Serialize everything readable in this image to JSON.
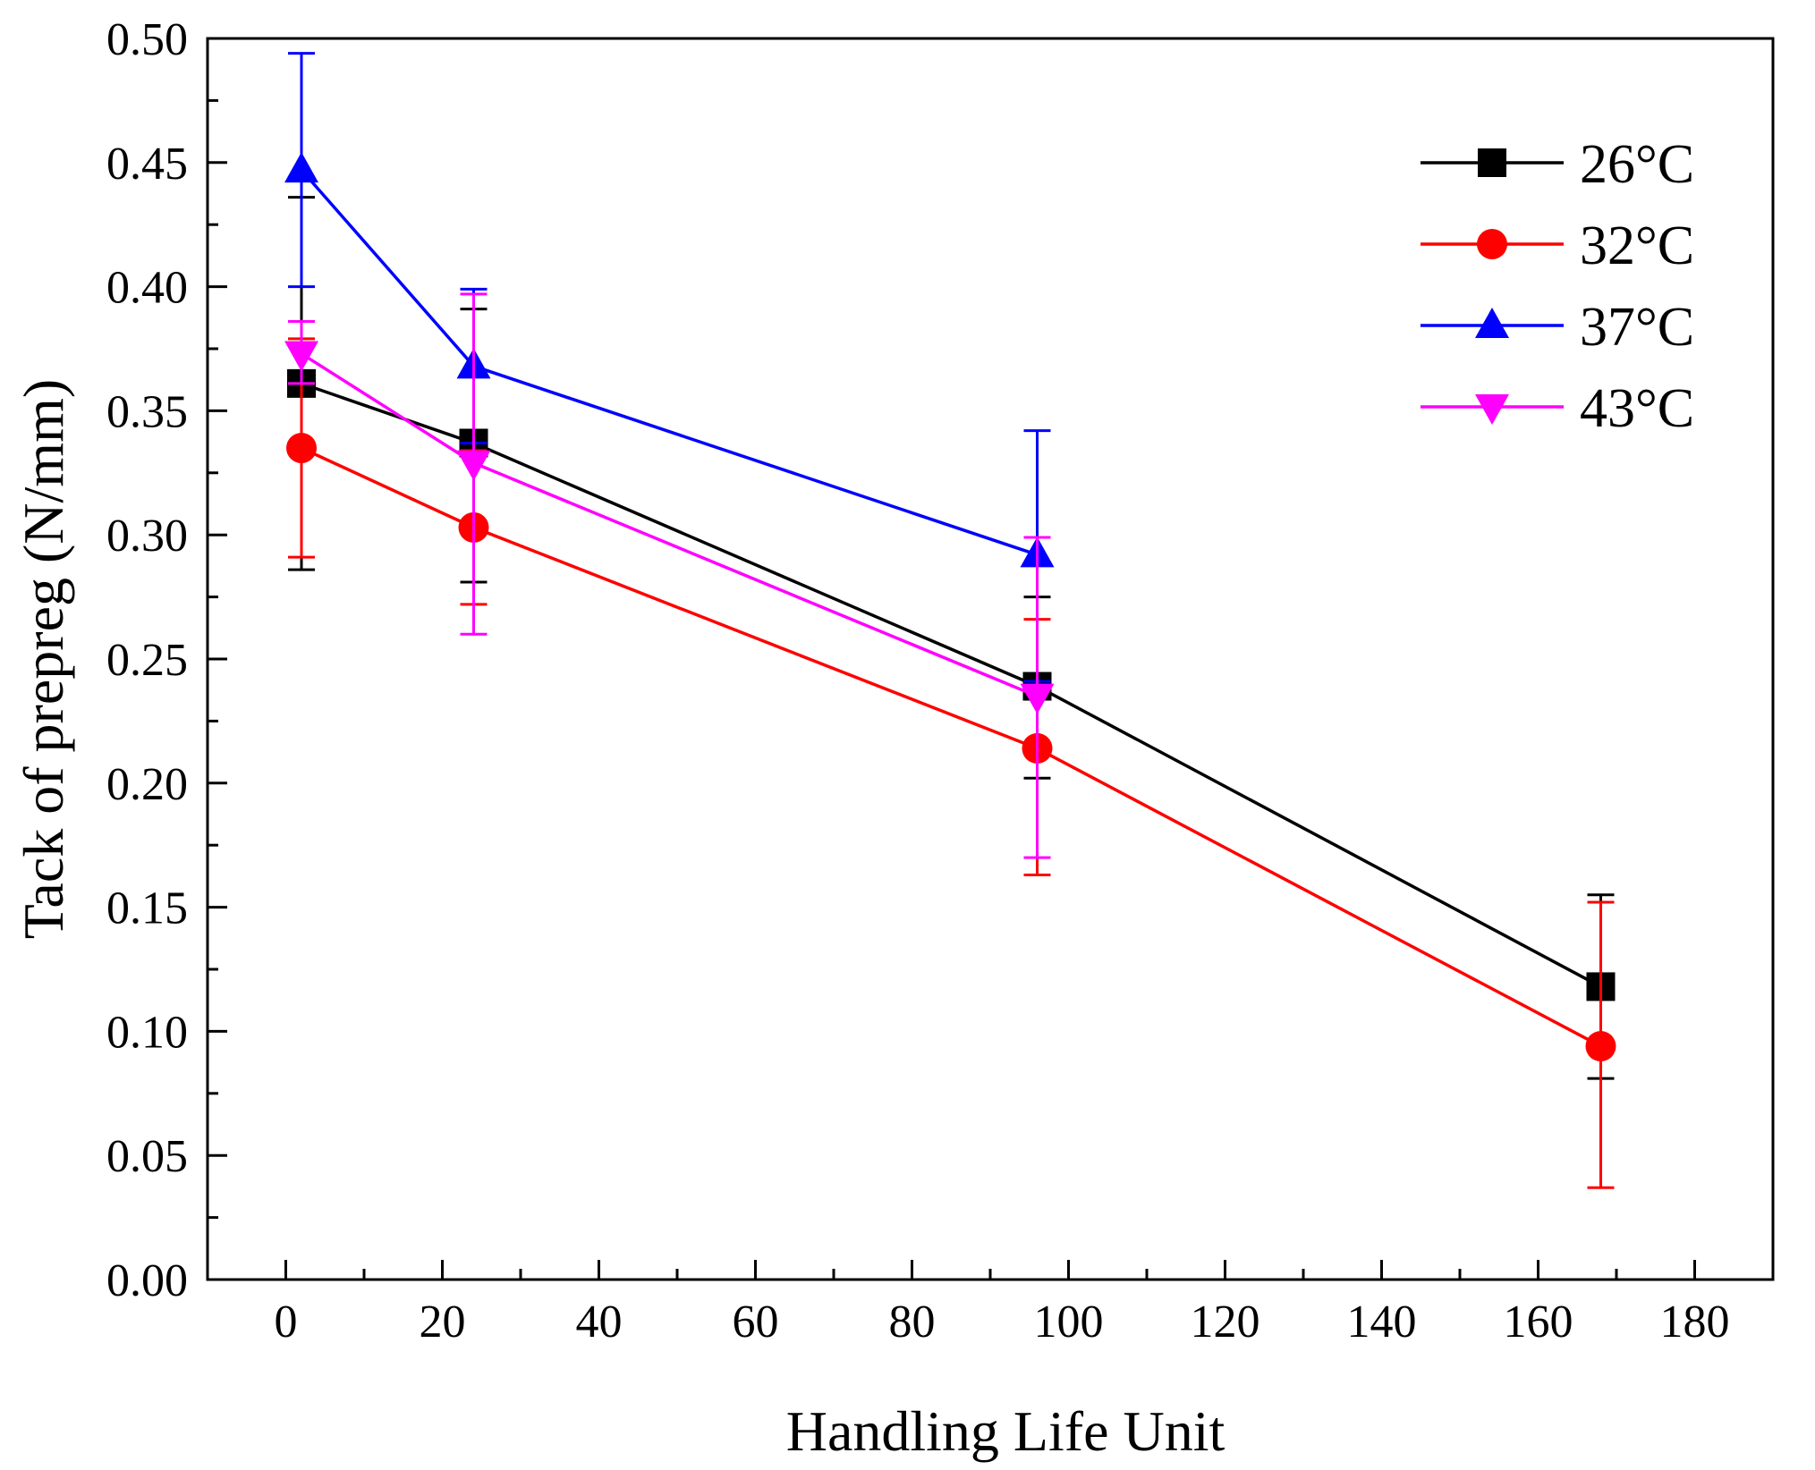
{
  "chart_data": {
    "type": "line",
    "title": "",
    "xlabel": "Handling Life Unit",
    "ylabel": "Tack of prepreg (N/mm)",
    "xlim": [
      -10,
      190
    ],
    "ylim": [
      0.0,
      0.5
    ],
    "xticks": [
      0,
      20,
      40,
      60,
      80,
      100,
      120,
      140,
      160,
      180
    ],
    "yticks": [
      0.0,
      0.05,
      0.1,
      0.15,
      0.2,
      0.25,
      0.3,
      0.35,
      0.4,
      0.45,
      0.5
    ],
    "xtick_labels": [
      "0",
      "20",
      "40",
      "60",
      "80",
      "100",
      "120",
      "140",
      "160",
      "180"
    ],
    "ytick_labels": [
      "0.00",
      "0.05",
      "0.10",
      "0.15",
      "0.20",
      "0.25",
      "0.30",
      "0.35",
      "0.40",
      "0.45",
      "0.50"
    ],
    "legend_position": "top-right",
    "grid": false,
    "series": [
      {
        "name": "26°C",
        "color": "#000000",
        "marker": "square",
        "x": [
          2,
          24,
          96,
          168
        ],
        "y": [
          0.361,
          0.337,
          0.239,
          0.118
        ],
        "err_low": [
          0.286,
          0.281,
          0.202,
          0.081
        ],
        "err_high": [
          0.436,
          0.391,
          0.275,
          0.155
        ]
      },
      {
        "name": "32°C",
        "color": "#ff0000",
        "marker": "circle",
        "x": [
          2,
          24,
          96,
          168
        ],
        "y": [
          0.335,
          0.303,
          0.214,
          0.094
        ],
        "err_low": [
          0.291,
          0.272,
          0.163,
          0.037
        ],
        "err_high": [
          0.379,
          0.334,
          0.266,
          0.152
        ]
      },
      {
        "name": "37°C",
        "color": "#0000ff",
        "marker": "triangle-up",
        "x": [
          2,
          24,
          96
        ],
        "y": [
          0.447,
          0.368,
          0.292
        ],
        "err_low": [
          0.4,
          0.337,
          0.241
        ],
        "err_high": [
          0.494,
          0.399,
          0.342
        ]
      },
      {
        "name": "43°C",
        "color": "#ff00ff",
        "marker": "triangle-down",
        "x": [
          2,
          24,
          96
        ],
        "y": [
          0.373,
          0.329,
          0.235
        ],
        "err_low": [
          0.361,
          0.26,
          0.17
        ],
        "err_high": [
          0.386,
          0.397,
          0.299
        ]
      }
    ]
  }
}
